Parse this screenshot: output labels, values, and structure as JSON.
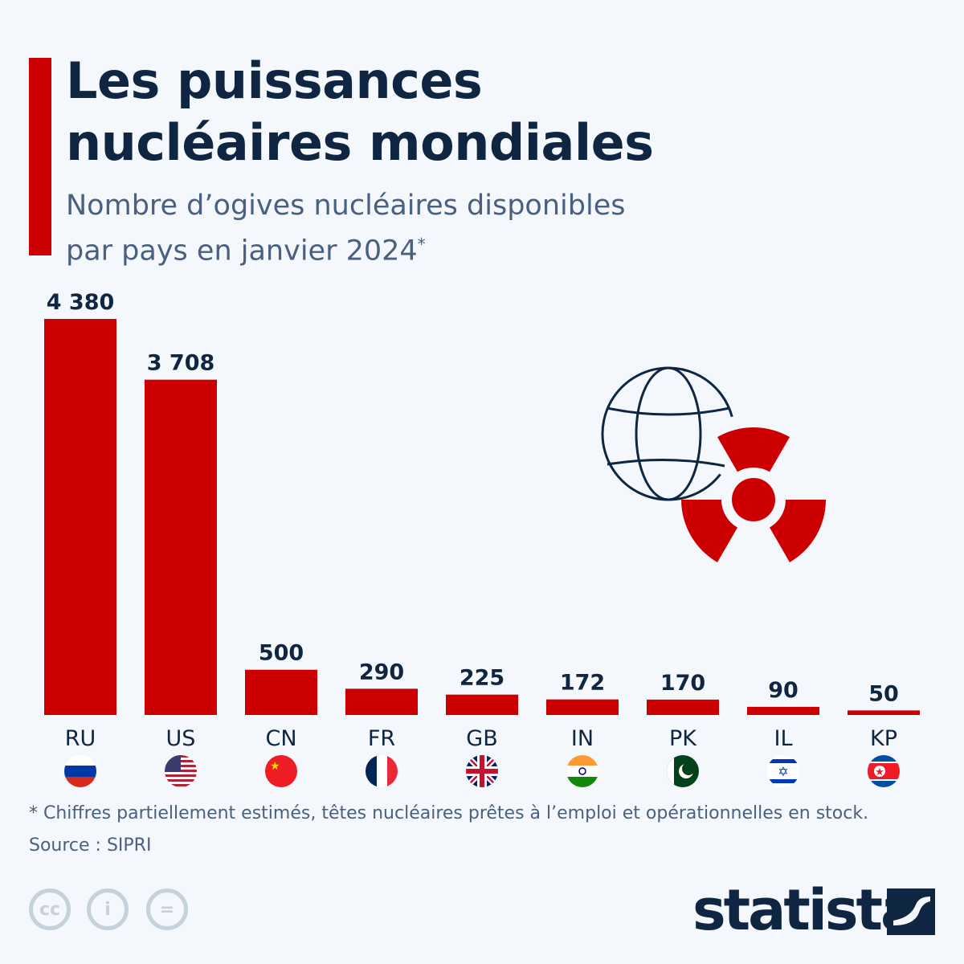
{
  "title": "Les puissances nucléaires mondiales",
  "title_lines": [
    "Les puissances",
    "nucléaires mondiales"
  ],
  "subtitle_line1": "Nombre d’ogives nucléaires disponibles",
  "subtitle_line2": "par pays en janvier 2024",
  "subtitle_mark": "*",
  "footnote": "* Chiffres partiellement estimés, têtes nucléaires prêtes à l’emploi et opérationnelles en stock.",
  "source": "Source : SIPRI",
  "brand": "statista",
  "license_icons": [
    "cc-icon",
    "attribution-icon",
    "no-derivatives-icon"
  ],
  "colors": {
    "bar": "#cc0000",
    "text": "#0f2642",
    "muted": "#4a6080",
    "background": "#f4f7fb"
  },
  "chart_data": {
    "type": "bar",
    "categories": [
      "RU",
      "US",
      "CN",
      "FR",
      "GB",
      "IN",
      "PK",
      "IL",
      "KP"
    ],
    "values": [
      4380,
      3708,
      500,
      290,
      225,
      172,
      170,
      90,
      50
    ],
    "labels": [
      "4 380",
      "3 708",
      "500",
      "290",
      "225",
      "172",
      "170",
      "90",
      "50"
    ],
    "flags": [
      "russia-flag",
      "usa-flag",
      "china-flag",
      "france-flag",
      "uk-flag",
      "india-flag",
      "pakistan-flag",
      "israel-flag",
      "north-korea-flag"
    ],
    "ylim": [
      0,
      4380
    ],
    "grid": false,
    "legend": "none",
    "illustration": [
      "globe-icon",
      "radiation-icon"
    ]
  }
}
